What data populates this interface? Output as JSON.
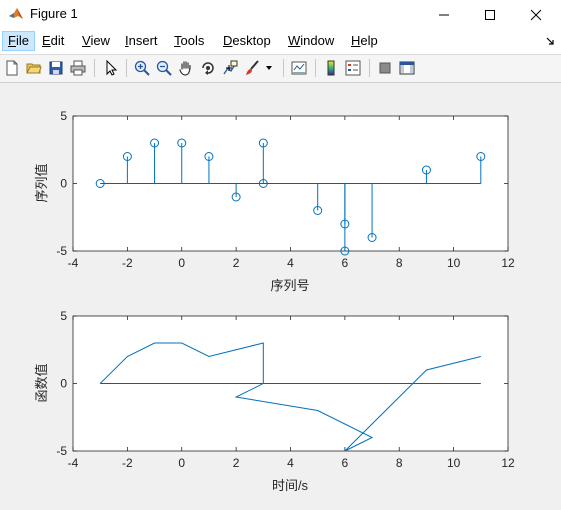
{
  "window": {
    "title": "Figure 1"
  },
  "menu": {
    "file": {
      "label": "File",
      "u": "F",
      "rest": "ile"
    },
    "edit": {
      "label": "Edit",
      "u": "E",
      "rest": "dit"
    },
    "view": {
      "label": "View",
      "u": "V",
      "rest": "iew"
    },
    "insert": {
      "label": "Insert",
      "u": "I",
      "rest": "nsert"
    },
    "tools": {
      "label": "Tools",
      "u": "T",
      "rest": "ools"
    },
    "desktop": {
      "label": "Desktop",
      "u": "D",
      "rest": "esktop"
    },
    "window": {
      "label": "Window",
      "u": "W",
      "rest": "indow"
    },
    "help": {
      "label": "Help",
      "u": "H",
      "rest": "elp"
    }
  },
  "toolbar": {
    "icons": [
      "new-figure-icon",
      "open-icon",
      "save-icon",
      "print-icon",
      "pointer-icon",
      "zoom-in-icon",
      "zoom-out-icon",
      "pan-icon",
      "rotate-3d-icon",
      "data-cursor-icon",
      "brush-icon",
      "link-plot-icon",
      "colorbar-icon",
      "legend-icon",
      "hide-plot-tools-icon",
      "show-plot-tools-icon"
    ]
  },
  "colors": {
    "stem": "#0072bd",
    "baseline": "#ff0000",
    "line": "#0072bd",
    "axes_bg": "#ffffff"
  },
  "chart_data": [
    {
      "type": "stem",
      "xlabel": "序列号",
      "ylabel": "序列值",
      "xlim": [
        -4,
        12
      ],
      "ylim": [
        -5,
        5
      ],
      "xticks": [
        "-4",
        "-2",
        "0",
        "2",
        "4",
        "6",
        "8",
        "10",
        "12"
      ],
      "yticks": [
        "-5",
        "0",
        "5"
      ],
      "baseline": {
        "from": -3,
        "to": 11,
        "y": 0
      },
      "x": [
        -3,
        -2,
        -1,
        0,
        1,
        2,
        3,
        3,
        5,
        6,
        6,
        7,
        9,
        11
      ],
      "y": [
        0,
        2,
        3,
        3,
        2,
        -1,
        3,
        0,
        -2,
        -3,
        -5,
        -4,
        1,
        2
      ]
    },
    {
      "type": "line",
      "xlabel": "时间/s",
      "ylabel": "函数值",
      "xlim": [
        -4,
        12
      ],
      "ylim": [
        -5,
        5
      ],
      "xticks": [
        "-4",
        "-2",
        "0",
        "2",
        "4",
        "6",
        "8",
        "10",
        "12"
      ],
      "yticks": [
        "-5",
        "0",
        "5"
      ],
      "baseline": {
        "from": -3,
        "to": 11,
        "y": 0
      },
      "x": [
        -3,
        -2,
        -1,
        0,
        1,
        3,
        3,
        2,
        5,
        7,
        6,
        9,
        11
      ],
      "y": [
        0,
        2,
        3,
        3,
        2,
        3,
        0,
        -1,
        -2,
        -4,
        -5,
        1,
        2
      ]
    }
  ]
}
